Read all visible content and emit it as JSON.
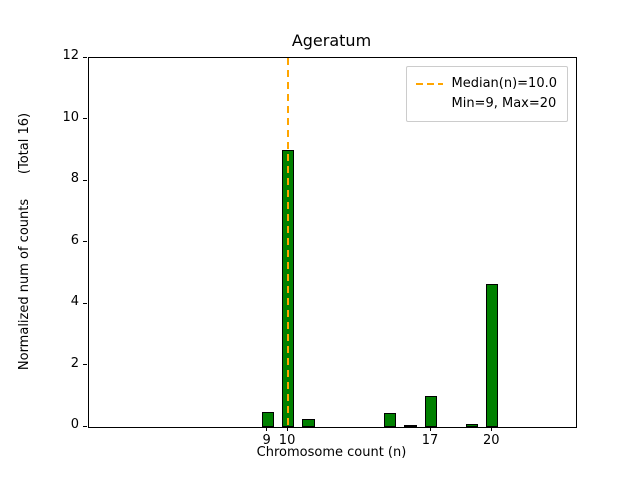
{
  "chart_data": {
    "type": "bar",
    "title": "Ageratum",
    "xlabel": "Chromosome count (n)",
    "ylabel": "Normalized num of counts      (Total 16)",
    "x": [
      9,
      10,
      11,
      15,
      16,
      17,
      19,
      20
    ],
    "values": [
      0.5,
      9.0,
      0.25,
      0.45,
      0.05,
      1.0,
      0.1,
      4.65
    ],
    "bar_width": 0.6,
    "bar_color": "#008000",
    "bar_edge_color": "#000000",
    "xlim": [
      0.25,
      24.1
    ],
    "ylim": [
      0,
      12
    ],
    "xticks": [
      9,
      10,
      17,
      20
    ],
    "yticks": [
      0,
      2,
      4,
      6,
      8,
      10,
      12
    ],
    "grid": false,
    "median_line": {
      "x": 10,
      "color": "#ffa500",
      "style": "dashed"
    },
    "legend": {
      "position": "upper right",
      "entries": [
        "Median(n)=10.0",
        "Min=9, Max=20"
      ]
    }
  }
}
